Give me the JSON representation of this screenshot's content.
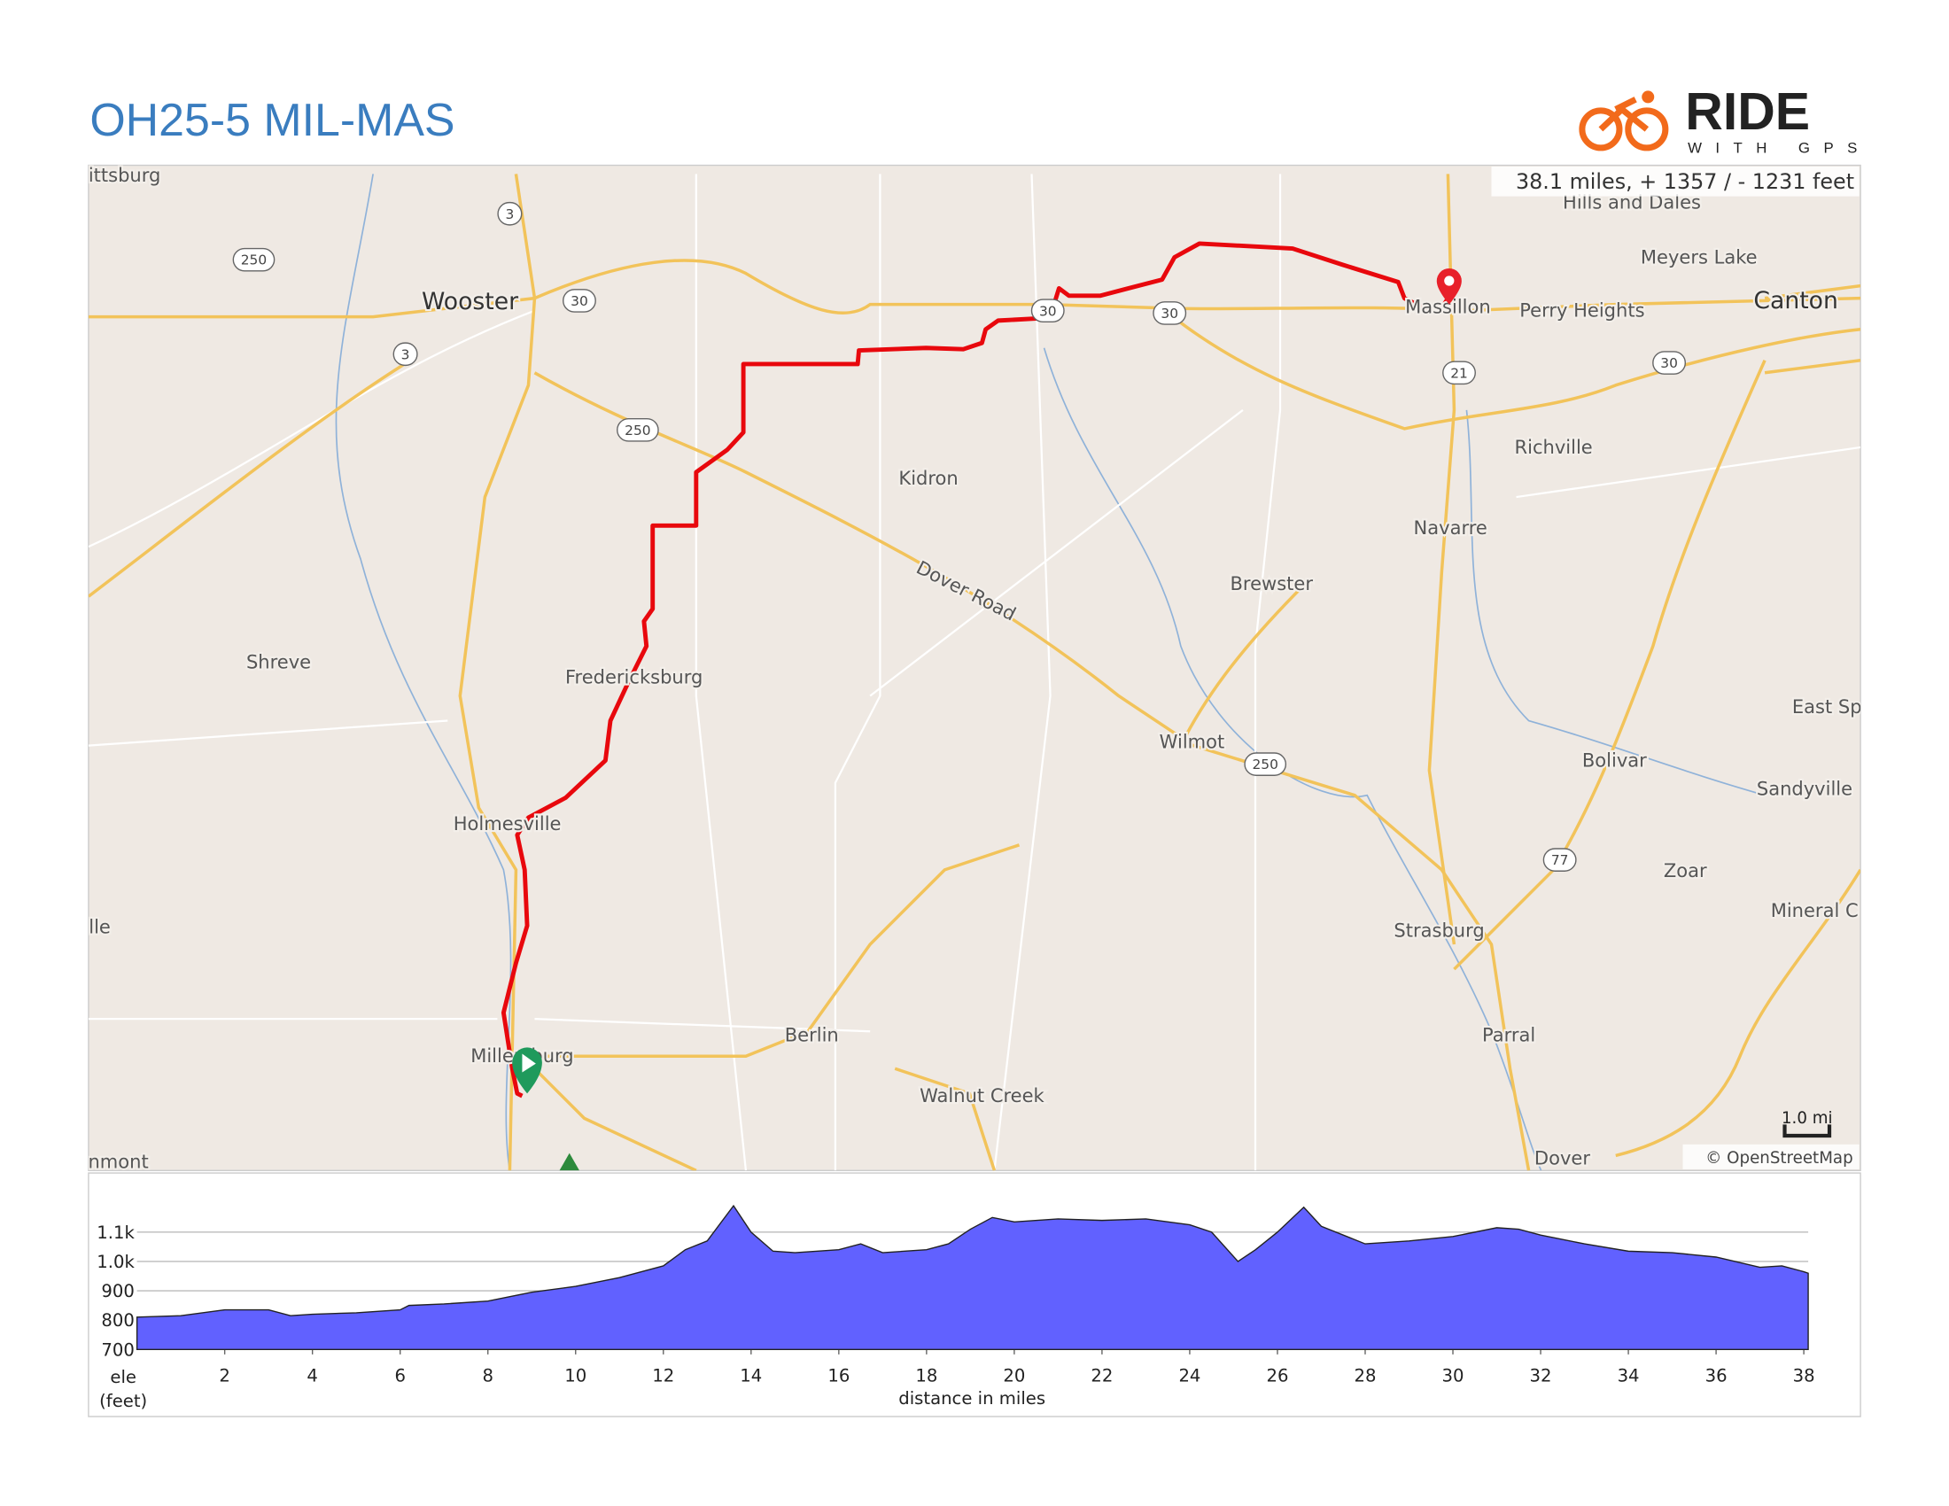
{
  "header": {
    "title": "OH25-5 MIL-MAS",
    "logo_main": "RIDE",
    "logo_sub": "WITH GPS"
  },
  "map": {
    "stats": "38.1 miles, + 1357 / - 1231 feet",
    "scale": "1.0 mi",
    "attribution": "© OpenStreetMap",
    "places": [
      "ittsburg",
      "Hills and Dales",
      "Meyers Lake",
      "Wooster",
      "Massillon",
      "Perry Heights",
      "Canton",
      "Richville",
      "Kidron",
      "Navarre",
      "Brewster",
      "Dover Road",
      "Shreve",
      "Fredericksburg",
      "East Sp",
      "Wilmot",
      "Bolivar",
      "Sandyville",
      "Holmesville",
      "Zoar",
      "lle",
      "Mineral C",
      "Strasburg",
      "Berlin",
      "Parral",
      "Millersburg",
      "Walnut Creek",
      "nmont",
      "Dover"
    ],
    "shields": [
      "3",
      "250",
      "30",
      "3",
      "250",
      "30",
      "30",
      "21",
      "30",
      "250",
      "77"
    ]
  },
  "chart_data": {
    "type": "area",
    "color": "#6161ff",
    "x_label": "distance in miles",
    "y_label": "ele",
    "y_label_unit": "(feet)",
    "x": [
      0,
      1,
      2,
      3,
      3.5,
      4,
      5,
      6,
      6.2,
      7,
      8,
      8.5,
      9,
      10,
      11,
      12,
      12.5,
      13,
      13.6,
      14,
      14.5,
      15,
      16,
      16.5,
      17,
      18,
      18.5,
      19,
      19.5,
      20,
      21,
      22,
      23,
      24,
      24.5,
      25.1,
      25.5,
      26,
      26.6,
      27,
      28,
      29,
      30,
      31,
      31.5,
      32,
      33,
      34,
      35,
      36,
      37,
      37.5,
      38,
      38.1
    ],
    "values": [
      810,
      815,
      835,
      835,
      815,
      820,
      825,
      835,
      850,
      855,
      865,
      880,
      895,
      915,
      945,
      985,
      1040,
      1070,
      1190,
      1100,
      1035,
      1030,
      1040,
      1060,
      1030,
      1040,
      1060,
      1110,
      1150,
      1135,
      1145,
      1140,
      1145,
      1125,
      1100,
      1000,
      1040,
      1100,
      1185,
      1120,
      1060,
      1070,
      1085,
      1115,
      1110,
      1090,
      1060,
      1035,
      1030,
      1015,
      980,
      985,
      965,
      960
    ],
    "xlim": [
      0,
      38.1
    ],
    "ylim": [
      700,
      1200
    ],
    "xticks": [
      2,
      4,
      6,
      8,
      10,
      12,
      14,
      16,
      18,
      20,
      22,
      24,
      26,
      28,
      30,
      32,
      34,
      36,
      38
    ],
    "yticks": [
      700,
      800,
      900,
      {
        "value": 1000,
        "label": "1.0k"
      },
      {
        "value": 1100,
        "label": "1.1k"
      }
    ],
    "grid": true
  }
}
